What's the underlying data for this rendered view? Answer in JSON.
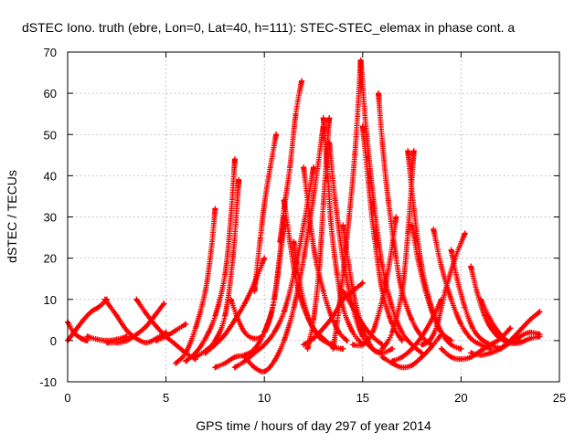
{
  "chart_data": {
    "type": "scatter",
    "title": "dSTEC Iono. truth (ebre, Lon=0, Lat=40, h=111): STEC-STEC_elemax in phase cont. a",
    "xlabel": "GPS time / hours of day 297 of year 2014",
    "ylabel": "dSTEC  / TECUs",
    "xlim": [
      0,
      25
    ],
    "ylim": [
      -10,
      70
    ],
    "xticks": [
      0,
      5,
      10,
      15,
      20,
      25
    ],
    "yticks": [
      -10,
      0,
      10,
      20,
      30,
      40,
      50,
      60,
      70
    ],
    "grid": true,
    "marker": "+",
    "color": "#ff0000",
    "series": [
      {
        "x": [
          0.0,
          0.4,
          0.8,
          1.2,
          1.6,
          2.0
        ],
        "y": [
          0.0,
          2.5,
          5.0,
          7.0,
          8.2,
          10.0
        ]
      },
      {
        "x": [
          0.0,
          0.3,
          0.7,
          1.0
        ],
        "y": [
          4.5,
          2.0,
          0.5,
          0.0
        ]
      },
      {
        "x": [
          1.9,
          2.5,
          3.0,
          3.5,
          4.0,
          4.5,
          5.0
        ],
        "y": [
          10.0,
          6.0,
          2.5,
          0.5,
          -0.5,
          0.5,
          2.0
        ]
      },
      {
        "x": [
          3.5,
          4.0,
          4.5,
          5.0,
          5.5,
          6.0,
          6.5
        ],
        "y": [
          10.0,
          6.5,
          3.5,
          1.0,
          -1.0,
          -3.0,
          -4.5
        ]
      },
      {
        "x": [
          2.0,
          2.5,
          3.0,
          3.5,
          4.0,
          4.5,
          4.9
        ],
        "y": [
          -0.5,
          -0.5,
          0.0,
          1.5,
          3.5,
          6.5,
          9.0
        ]
      },
      {
        "x": [
          1.0,
          1.5,
          2.0,
          2.5,
          3.0
        ],
        "y": [
          1.0,
          0.3,
          0.0,
          0.3,
          1.0
        ]
      },
      {
        "x": [
          4.5,
          5.0,
          5.5,
          6.0
        ],
        "y": [
          0.0,
          1.0,
          2.5,
          4.0
        ]
      },
      {
        "x": [
          5.5,
          6.0,
          6.5,
          7.0,
          7.3,
          7.5
        ],
        "y": [
          -5.5,
          -3.0,
          3.0,
          12.0,
          22.0,
          32.0
        ]
      },
      {
        "x": [
          6.0,
          6.5,
          7.0,
          7.5,
          8.0,
          8.3,
          8.5
        ],
        "y": [
          -5.0,
          -3.0,
          0.5,
          6.0,
          16.0,
          30.0,
          44.0
        ]
      },
      {
        "x": [
          6.5,
          7.0,
          7.5,
          8.0,
          8.4,
          8.7
        ],
        "y": [
          -4.0,
          -2.5,
          0.0,
          6.0,
          20.0,
          39.0
        ]
      },
      {
        "x": [
          7.5,
          8.0,
          8.5,
          9.0,
          9.5,
          10.0,
          10.5,
          11.0
        ],
        "y": [
          -6.5,
          -5.5,
          -4.0,
          -3.5,
          -2.0,
          2.0,
          10.0,
          28.0
        ]
      },
      {
        "x": [
          8.5,
          9.0,
          9.5,
          10.0,
          10.5,
          11.0,
          11.5,
          12.0,
          12.5
        ],
        "y": [
          -6.5,
          -5.0,
          -3.0,
          -1.0,
          2.0,
          7.0,
          16.0,
          28.0,
          42.0
        ]
      },
      {
        "x": [
          7.0,
          7.5,
          8.0,
          8.5,
          9.0,
          9.5,
          10.0
        ],
        "y": [
          -3.0,
          -1.0,
          1.5,
          5.0,
          9.0,
          14.0,
          20.0
        ]
      },
      {
        "x": [
          8.3,
          8.6,
          9.0,
          9.5,
          10.0,
          10.5,
          11.0
        ],
        "y": [
          10.0,
          6.0,
          2.0,
          0.5,
          2.0,
          10.0,
          30.0
        ]
      },
      {
        "x": [
          9.0,
          9.5,
          10.0,
          10.5,
          11.0,
          11.5,
          12.0,
          12.5,
          13.0
        ],
        "y": [
          -4.0,
          -6.5,
          -7.5,
          -5.0,
          0.0,
          8.0,
          20.0,
          35.0,
          52.0
        ]
      },
      {
        "x": [
          9.5,
          9.8,
          10.0,
          10.3,
          10.6
        ],
        "y": [
          12.0,
          25.0,
          33.0,
          42.0,
          50.0
        ]
      },
      {
        "x": [
          10.8,
          11.0,
          11.3,
          11.6,
          11.9
        ],
        "y": [
          24.0,
          32.0,
          42.0,
          55.0,
          63.0
        ]
      },
      {
        "x": [
          11.0,
          11.3,
          11.6,
          12.0,
          12.5,
          13.0,
          13.5,
          14.0
        ],
        "y": [
          34.0,
          24.0,
          15.0,
          8.0,
          3.0,
          0.5,
          -1.5,
          -2.0
        ]
      },
      {
        "x": [
          11.5,
          11.8,
          12.2,
          12.6,
          13.0,
          13.5
        ],
        "y": [
          24.0,
          14.0,
          6.0,
          2.0,
          0.0,
          -1.0
        ]
      },
      {
        "x": [
          12.0,
          12.3,
          12.6,
          13.0,
          13.4,
          13.8,
          14.2
        ],
        "y": [
          42.0,
          30.0,
          20.0,
          12.0,
          6.0,
          2.0,
          0.0
        ]
      },
      {
        "x": [
          12.2,
          12.5,
          12.8,
          13.0,
          13.3
        ],
        "y": [
          -2.0,
          5.0,
          18.0,
          33.0,
          54.0
        ]
      },
      {
        "x": [
          13.0,
          13.2,
          13.4,
          13.7,
          14.0,
          14.5,
          15.0
        ],
        "y": [
          54.0,
          42.0,
          28.0,
          16.0,
          8.0,
          2.0,
          -1.0
        ]
      },
      {
        "x": [
          13.3,
          13.6,
          14.0,
          14.5,
          15.0,
          15.5,
          16.0
        ],
        "y": [
          48.0,
          34.0,
          20.0,
          8.0,
          1.0,
          -2.0,
          -3.0
        ]
      },
      {
        "x": [
          14.0,
          14.3,
          14.6,
          15.0,
          15.5,
          16.0,
          16.5
        ],
        "y": [
          28.0,
          18.0,
          10.0,
          3.0,
          -2.0,
          -3.0,
          -2.0
        ]
      },
      {
        "x": [
          13.5,
          13.8,
          14.2,
          14.6,
          14.9
        ],
        "y": [
          -2.0,
          8.0,
          25.0,
          45.0,
          68.0
        ]
      },
      {
        "x": [
          14.9,
          15.2,
          15.6,
          16.0,
          16.5,
          17.0,
          17.5,
          18.0
        ],
        "y": [
          68.0,
          50.0,
          32.0,
          18.0,
          8.0,
          2.0,
          -1.0,
          -3.0
        ]
      },
      {
        "x": [
          15.0,
          15.3,
          15.6,
          16.0,
          16.5,
          17.0
        ],
        "y": [
          52.0,
          38.0,
          25.0,
          12.0,
          4.0,
          0.0
        ]
      },
      {
        "x": [
          15.8,
          16.0,
          16.3,
          16.7,
          17.0,
          17.5,
          18.0,
          18.5
        ],
        "y": [
          60.0,
          48.0,
          34.0,
          20.0,
          12.0,
          5.0,
          1.0,
          -1.0
        ]
      },
      {
        "x": [
          14.5,
          15.0,
          15.5,
          16.0,
          16.4,
          16.7
        ],
        "y": [
          -1.0,
          -1.0,
          2.0,
          10.0,
          20.0,
          30.0
        ]
      },
      {
        "x": [
          16.0,
          16.5,
          17.0,
          17.3,
          17.6
        ],
        "y": [
          -2.0,
          2.0,
          12.0,
          26.0,
          46.0
        ]
      },
      {
        "x": [
          17.3,
          17.6,
          18.0,
          18.5,
          19.0,
          19.5,
          20.0
        ],
        "y": [
          46.0,
          32.0,
          18.0,
          8.0,
          2.0,
          -1.0,
          -2.0
        ]
      },
      {
        "x": [
          17.5,
          17.8,
          18.2,
          18.6,
          19.0,
          19.5
        ],
        "y": [
          28.0,
          20.0,
          12.0,
          6.0,
          2.0,
          0.0
        ]
      },
      {
        "x": [
          16.0,
          16.5,
          17.0,
          17.5,
          18.0,
          18.5,
          19.0
        ],
        "y": [
          -4.0,
          -5.5,
          -6.5,
          -6.0,
          -4.0,
          -1.5,
          1.5
        ]
      },
      {
        "x": [
          18.0,
          18.4,
          18.8,
          19.2,
          19.7,
          20.2
        ],
        "y": [
          -1.0,
          0.0,
          4.0,
          12.0,
          20.0,
          26.0
        ]
      },
      {
        "x": [
          18.6,
          19.0,
          19.5,
          20.0,
          20.5,
          21.0,
          21.5
        ],
        "y": [
          27.0,
          18.0,
          10.0,
          4.0,
          0.5,
          -1.0,
          -2.0
        ]
      },
      {
        "x": [
          19.5,
          19.8,
          20.2,
          20.6,
          21.0,
          21.5,
          22.0
        ],
        "y": [
          22.0,
          15.0,
          8.0,
          3.0,
          0.5,
          -1.0,
          -2.0
        ]
      },
      {
        "x": [
          19.0,
          19.5,
          20.0,
          20.5,
          21.0,
          21.5,
          22.0,
          22.5
        ],
        "y": [
          -2.0,
          -4.0,
          -4.5,
          -4.0,
          -2.5,
          -1.0,
          0.5,
          3.0
        ]
      },
      {
        "x": [
          20.5,
          20.8,
          21.2,
          21.6,
          22.0,
          22.5,
          23.0
        ],
        "y": [
          18.0,
          12.0,
          6.0,
          2.5,
          0.5,
          -0.5,
          0.0
        ]
      },
      {
        "x": [
          20.5,
          21.0,
          21.5,
          22.0,
          22.5,
          23.0,
          23.5,
          24.0
        ],
        "y": [
          -3.0,
          -3.5,
          -3.0,
          -2.0,
          -0.5,
          1.0,
          2.0,
          1.5
        ]
      },
      {
        "x": [
          21.0,
          21.5,
          22.0,
          22.5,
          23.0,
          23.5,
          24.0
        ],
        "y": [
          10.0,
          5.0,
          1.5,
          -0.5,
          -0.5,
          0.5,
          1.0
        ]
      },
      {
        "x": [
          22.0,
          22.5,
          23.0,
          23.5,
          24.0
        ],
        "y": [
          -2.0,
          0.0,
          2.5,
          5.0,
          7.0
        ]
      },
      {
        "x": [
          12.0,
          12.5,
          13.0,
          13.5,
          14.0,
          14.5,
          15.0
        ],
        "y": [
          -1.0,
          0.5,
          3.0,
          6.0,
          10.0,
          12.0,
          14.0
        ]
      },
      {
        "x": [
          14.0,
          14.5,
          15.0,
          15.5,
          16.0
        ],
        "y": [
          12.0,
          8.0,
          4.0,
          1.0,
          -1.0
        ]
      },
      {
        "x": [
          16.5,
          17.0,
          17.5,
          18.0,
          18.5,
          19.0
        ],
        "y": [
          -5.0,
          -4.0,
          -2.0,
          1.0,
          5.0,
          10.0
        ]
      }
    ]
  }
}
